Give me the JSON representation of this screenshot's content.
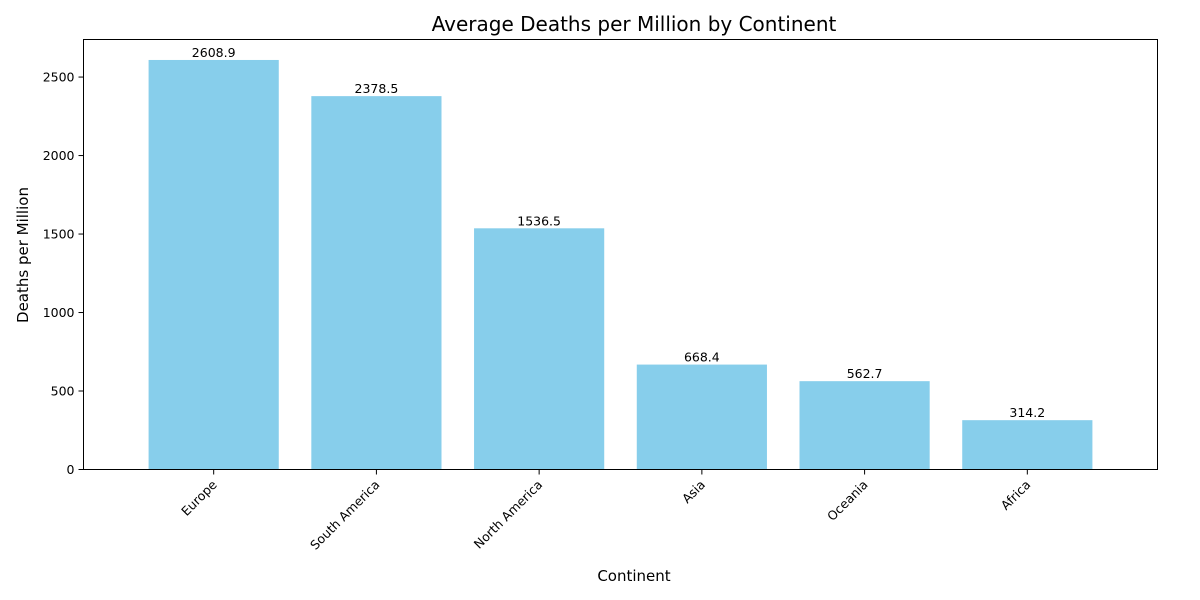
{
  "chart_data": {
    "type": "bar",
    "title": "Average Deaths per Million by Continent",
    "xlabel": "Continent",
    "ylabel": "Deaths per Million",
    "categories": [
      "Europe",
      "South America",
      "North America",
      "Asia",
      "Oceania",
      "Africa"
    ],
    "values": [
      2608.9,
      2378.5,
      1536.5,
      668.4,
      562.7,
      314.2
    ],
    "value_labels": [
      "2608.9",
      "2378.5",
      "1536.5",
      "668.4",
      "562.7",
      "314.2"
    ],
    "ylim": [
      0,
      2739.3
    ],
    "yticks": [
      0,
      500,
      1000,
      1500,
      2000,
      2500
    ],
    "ytick_labels": [
      "0",
      "500",
      "1000",
      "1500",
      "2000",
      "2500"
    ],
    "bar_color": "#87CEEB",
    "grid": false,
    "legend": "none"
  }
}
